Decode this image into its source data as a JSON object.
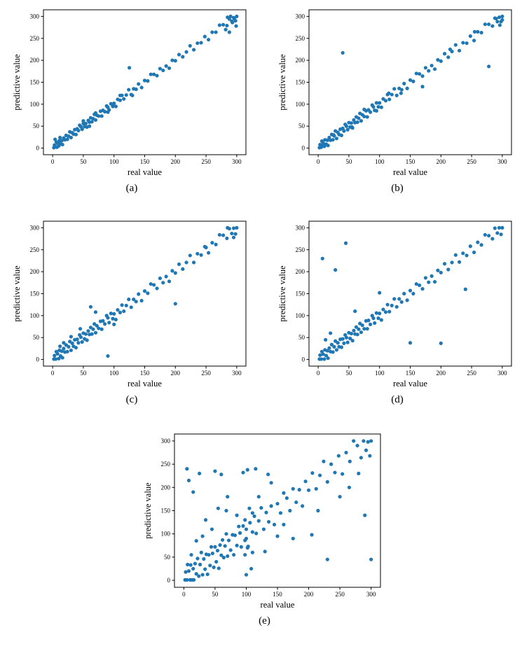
{
  "figure": {
    "background": "#ffffff",
    "marker_color": "#1f77b4"
  },
  "chart_data": [
    {
      "type": "scatter",
      "label": "(a)",
      "xlabel": "real value",
      "ylabel": "predictive value",
      "xticks": [
        0,
        50,
        100,
        150,
        200,
        250,
        300
      ],
      "yticks": [
        0,
        50,
        100,
        150,
        200,
        250,
        300
      ],
      "xlim": [
        -15,
        315
      ],
      "ylim": [
        -15,
        315
      ],
      "marker_color": "#1f77b4",
      "x": [
        2,
        3,
        5,
        6,
        8,
        10,
        11,
        13,
        15,
        16,
        18,
        20,
        22,
        24,
        26,
        28,
        30,
        32,
        34,
        36,
        38,
        40,
        42,
        44,
        46,
        48,
        50,
        52,
        54,
        56,
        58,
        60,
        62,
        64,
        66,
        68,
        70,
        72,
        75,
        78,
        80,
        82,
        85,
        88,
        90,
        92,
        95,
        98,
        100,
        103,
        106,
        110,
        113,
        116,
        120,
        124,
        128,
        132,
        136,
        140,
        145,
        150,
        155,
        160,
        165,
        170,
        175,
        180,
        185,
        190,
        195,
        200,
        206,
        212,
        218,
        224,
        230,
        236,
        242,
        248,
        254,
        260,
        266,
        272,
        278,
        284,
        288,
        292,
        295,
        298,
        300,
        125,
        285,
        290,
        293,
        296,
        299,
        288,
        282,
        4,
        7,
        12,
        50,
        60,
        70,
        90,
        110,
        130
      ],
      "y": [
        1,
        7,
        3,
        14,
        11,
        5,
        17,
        10,
        17,
        8,
        23,
        19,
        29,
        20,
        27,
        37,
        24,
        35,
        32,
        42,
        31,
        44,
        40,
        52,
        49,
        43,
        56,
        49,
        56,
        48,
        63,
        59,
        69,
        60,
        67,
        77,
        64,
        75,
        73,
        84,
        73,
        86,
        83,
        96,
        93,
        87,
        101,
        95,
        102,
        95,
        111,
        109,
        120,
        112,
        121,
        133,
        122,
        135,
        134,
        146,
        138,
        154,
        153,
        168,
        168,
        165,
        181,
        177,
        187,
        182,
        200,
        199,
        213,
        208,
        219,
        233,
        224,
        239,
        240,
        254,
        247,
        264,
        264,
        280,
        281,
        279,
        294,
        289,
        297,
        290,
        300,
        183,
        298,
        300,
        286,
        295,
        278,
        264,
        270,
        20,
        2,
        24,
        62,
        50,
        80,
        82,
        120,
        120
      ]
    },
    {
      "type": "scatter",
      "label": "(b)",
      "xlabel": "real value",
      "ylabel": "predictive value",
      "xticks": [
        0,
        50,
        100,
        150,
        200,
        250,
        300
      ],
      "yticks": [
        0,
        50,
        100,
        150,
        200,
        250,
        300
      ],
      "xlim": [
        -15,
        315
      ],
      "ylim": [
        -15,
        315
      ],
      "marker_color": "#1f77b4",
      "x": [
        2,
        3,
        5,
        6,
        8,
        10,
        11,
        13,
        15,
        16,
        18,
        20,
        22,
        24,
        26,
        28,
        30,
        32,
        34,
        36,
        38,
        40,
        42,
        44,
        46,
        48,
        50,
        52,
        54,
        56,
        58,
        60,
        62,
        64,
        66,
        68,
        70,
        72,
        75,
        78,
        80,
        82,
        85,
        88,
        90,
        92,
        95,
        98,
        100,
        103,
        106,
        110,
        113,
        116,
        120,
        124,
        128,
        132,
        136,
        140,
        145,
        150,
        155,
        160,
        165,
        170,
        175,
        180,
        185,
        190,
        195,
        200,
        206,
        212,
        218,
        224,
        230,
        236,
        242,
        248,
        254,
        260,
        266,
        272,
        278,
        284,
        288,
        292,
        295,
        298,
        300,
        40,
        170,
        278,
        8,
        25,
        55,
        75,
        95,
        115,
        135,
        215,
        255,
        290,
        296,
        300
      ],
      "y": [
        1,
        8,
        2,
        16,
        12,
        4,
        19,
        9,
        18,
        6,
        24,
        18,
        31,
        19,
        28,
        39,
        22,
        36,
        31,
        43,
        29,
        45,
        39,
        54,
        50,
        42,
        58,
        48,
        57,
        46,
        64,
        58,
        71,
        59,
        68,
        79,
        62,
        76,
        72,
        85,
        71,
        87,
        82,
        98,
        94,
        86,
        103,
        94,
        103,
        93,
        112,
        108,
        122,
        111,
        122,
        135,
        120,
        136,
        133,
        147,
        136,
        155,
        152,
        170,
        169,
        164,
        183,
        176,
        188,
        180,
        201,
        198,
        215,
        207,
        220,
        235,
        222,
        240,
        239,
        255,
        245,
        265,
        263,
        282,
        282,
        278,
        296,
        288,
        298,
        288,
        300,
        217,
        140,
        186,
        6,
        30,
        48,
        88,
        85,
        125,
        125,
        225,
        265,
        295,
        280,
        292
      ]
    },
    {
      "type": "scatter",
      "label": "(c)",
      "xlabel": "real value",
      "ylabel": "predictive value",
      "xticks": [
        0,
        50,
        100,
        150,
        200,
        250,
        300
      ],
      "yticks": [
        0,
        50,
        100,
        150,
        200,
        250,
        300
      ],
      "xlim": [
        -15,
        315
      ],
      "ylim": [
        -15,
        315
      ],
      "marker_color": "#1f77b4",
      "x": [
        2,
        3,
        5,
        6,
        8,
        10,
        11,
        13,
        15,
        16,
        18,
        20,
        22,
        24,
        26,
        28,
        30,
        32,
        34,
        36,
        38,
        40,
        42,
        44,
        46,
        48,
        50,
        52,
        54,
        56,
        58,
        60,
        62,
        64,
        66,
        68,
        70,
        72,
        75,
        78,
        80,
        82,
        85,
        88,
        90,
        92,
        95,
        98,
        100,
        103,
        106,
        110,
        113,
        116,
        120,
        124,
        128,
        132,
        136,
        140,
        145,
        150,
        155,
        160,
        165,
        170,
        175,
        180,
        185,
        190,
        195,
        200,
        206,
        212,
        218,
        224,
        230,
        236,
        242,
        248,
        254,
        260,
        266,
        272,
        278,
        284,
        288,
        292,
        295,
        298,
        300,
        90,
        200,
        62,
        70,
        18,
        30,
        100,
        250,
        285,
        295,
        12,
        45
      ],
      "y": [
        1,
        9,
        1,
        18,
        13,
        2,
        21,
        8,
        19,
        4,
        25,
        17,
        33,
        18,
        29,
        41,
        21,
        37,
        30,
        45,
        27,
        46,
        38,
        56,
        51,
        40,
        60,
        47,
        58,
        44,
        65,
        57,
        73,
        58,
        69,
        81,
        61,
        77,
        71,
        87,
        69,
        88,
        81,
        100,
        95,
        84,
        105,
        93,
        104,
        91,
        113,
        107,
        124,
        110,
        123,
        137,
        119,
        137,
        132,
        149,
        134,
        156,
        151,
        172,
        170,
        162,
        185,
        175,
        189,
        178,
        202,
        197,
        217,
        206,
        221,
        237,
        221,
        241,
        238,
        257,
        243,
        266,
        262,
        284,
        283,
        276,
        298,
        287,
        299,
        286,
        300,
        8,
        127,
        120,
        108,
        38,
        52,
        80,
        255,
        300,
        278,
        30,
        70
      ]
    },
    {
      "type": "scatter",
      "label": "(d)",
      "xlabel": "real value",
      "ylabel": "predictive value",
      "xticks": [
        0,
        50,
        100,
        150,
        200,
        250,
        300
      ],
      "yticks": [
        0,
        50,
        100,
        150,
        200,
        250,
        300
      ],
      "xlim": [
        -15,
        315
      ],
      "ylim": [
        -15,
        315
      ],
      "marker_color": "#1f77b4",
      "x": [
        2,
        3,
        5,
        6,
        8,
        10,
        11,
        13,
        15,
        16,
        18,
        20,
        22,
        24,
        26,
        28,
        30,
        32,
        34,
        36,
        38,
        40,
        42,
        44,
        46,
        48,
        50,
        52,
        54,
        56,
        58,
        60,
        62,
        64,
        66,
        68,
        70,
        72,
        75,
        78,
        80,
        82,
        85,
        88,
        90,
        92,
        95,
        98,
        100,
        103,
        106,
        110,
        113,
        116,
        120,
        124,
        128,
        132,
        136,
        140,
        145,
        150,
        155,
        160,
        165,
        170,
        175,
        180,
        185,
        190,
        195,
        200,
        206,
        212,
        218,
        224,
        230,
        236,
        242,
        248,
        254,
        260,
        266,
        272,
        278,
        284,
        288,
        292,
        295,
        298,
        300,
        7,
        28,
        45,
        150,
        200,
        100,
        60,
        240,
        12,
        20
      ],
      "y": [
        1,
        10,
        1,
        18,
        12,
        1,
        22,
        9,
        20,
        3,
        26,
        18,
        34,
        17,
        29,
        42,
        22,
        38,
        29,
        46,
        28,
        47,
        37,
        56,
        50,
        39,
        61,
        48,
        59,
        43,
        66,
        58,
        74,
        57,
        69,
        82,
        62,
        78,
        70,
        88,
        70,
        89,
        80,
        100,
        94,
        83,
        106,
        94,
        105,
        90,
        114,
        108,
        125,
        109,
        123,
        138,
        120,
        138,
        131,
        150,
        135,
        157,
        150,
        172,
        169,
        161,
        186,
        176,
        190,
        177,
        203,
        198,
        218,
        205,
        221,
        238,
        222,
        242,
        237,
        258,
        244,
        267,
        261,
        284,
        282,
        275,
        299,
        288,
        300,
        285,
        300,
        230,
        204,
        265,
        38,
        37,
        152,
        110,
        160,
        45,
        60
      ]
    },
    {
      "type": "scatter",
      "label": "(e)",
      "xlabel": "real value",
      "ylabel": "predictive value",
      "xticks": [
        0,
        50,
        100,
        150,
        200,
        250,
        300
      ],
      "yticks": [
        0,
        50,
        100,
        150,
        200,
        250,
        300
      ],
      "xlim": [
        -15,
        315
      ],
      "ylim": [
        -15,
        315
      ],
      "marker_color": "#1f77b4",
      "x": [
        2,
        3,
        5,
        6,
        8,
        10,
        11,
        13,
        15,
        16,
        18,
        20,
        22,
        24,
        26,
        28,
        30,
        32,
        34,
        36,
        38,
        40,
        42,
        44,
        46,
        48,
        50,
        52,
        54,
        56,
        58,
        60,
        62,
        64,
        66,
        68,
        70,
        72,
        75,
        78,
        80,
        82,
        85,
        88,
        90,
        92,
        95,
        98,
        100,
        103,
        106,
        110,
        113,
        116,
        120,
        124,
        128,
        132,
        136,
        140,
        145,
        150,
        155,
        160,
        165,
        170,
        175,
        180,
        185,
        190,
        195,
        200,
        206,
        212,
        218,
        224,
        230,
        236,
        242,
        248,
        254,
        260,
        266,
        272,
        278,
        284,
        288,
        292,
        295,
        298,
        300,
        5,
        8,
        15,
        25,
        35,
        50,
        60,
        68,
        95,
        100,
        102,
        108,
        110,
        115,
        130,
        135,
        150,
        160,
        175,
        205,
        215,
        230,
        250,
        265,
        280,
        290,
        300,
        45,
        70,
        85,
        20,
        30,
        12,
        55,
        120,
        140,
        98,
        105,
        110,
        100,
        102,
        98
      ],
      "y": [
        1,
        18,
        1,
        34,
        20,
        1,
        33,
        1,
        25,
        1,
        36,
        14,
        47,
        9,
        34,
        60,
        12,
        46,
        24,
        56,
        13,
        55,
        32,
        72,
        58,
        28,
        72,
        40,
        64,
        26,
        76,
        54,
        87,
        49,
        74,
        100,
        52,
        86,
        65,
        98,
        55,
        97,
        75,
        116,
        102,
        72,
        117,
        86,
        110,
        73,
        124,
        104,
        138,
        101,
        128,
        156,
        110,
        146,
        126,
        160,
        120,
        165,
        145,
        188,
        177,
        150,
        197,
        168,
        195,
        160,
        213,
        194,
        231,
        197,
        226,
        256,
        212,
        250,
        232,
        268,
        229,
        275,
        256,
        300,
        290,
        264,
        300,
        280,
        298,
        268,
        300,
        240,
        215,
        190,
        230,
        130,
        235,
        228,
        150,
        232,
        12,
        238,
        25,
        60,
        240,
        62,
        228,
        95,
        120,
        90,
        98,
        150,
        45,
        180,
        200,
        230,
        140,
        45,
        110,
        180,
        140,
        85,
        95,
        55,
        155,
        180,
        210,
        130,
        155,
        145,
        90,
        70,
        55
      ]
    }
  ]
}
